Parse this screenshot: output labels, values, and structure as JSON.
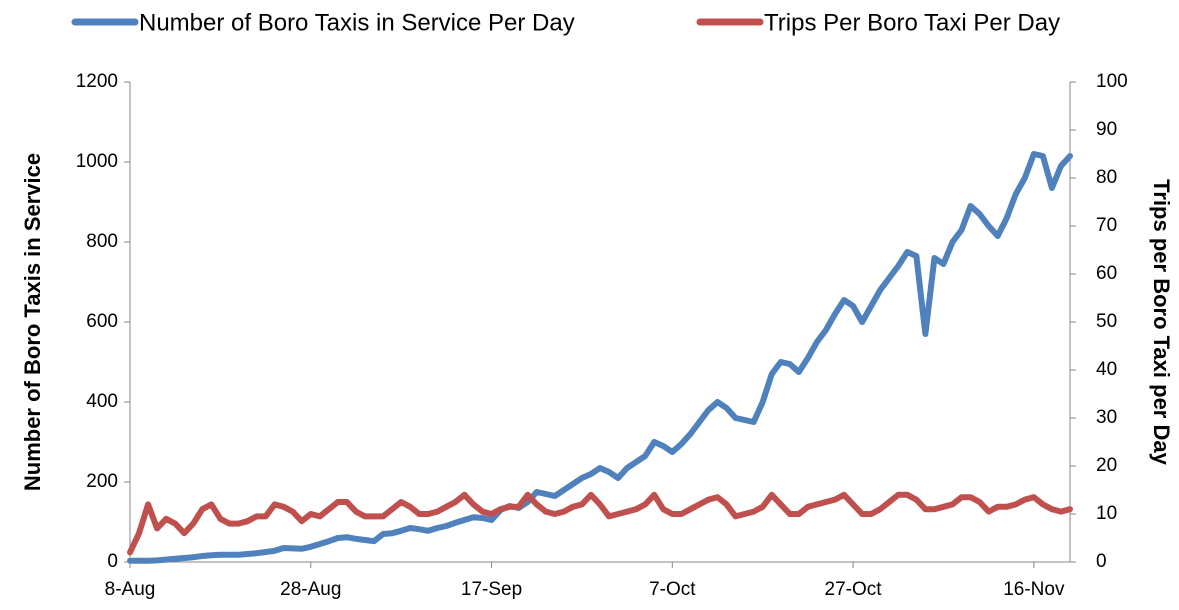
{
  "chart_data": {
    "type": "line",
    "categories": [
      "8-Aug",
      null,
      null,
      null,
      null,
      null,
      null,
      null,
      null,
      null,
      null,
      null,
      null,
      null,
      null,
      null,
      null,
      null,
      null,
      null,
      "28-Aug",
      null,
      null,
      null,
      null,
      null,
      null,
      null,
      null,
      null,
      null,
      null,
      null,
      null,
      null,
      null,
      null,
      null,
      null,
      null,
      "17-Sep",
      null,
      null,
      null,
      null,
      null,
      null,
      null,
      null,
      null,
      null,
      null,
      null,
      null,
      null,
      null,
      null,
      null,
      null,
      null,
      "7-Oct",
      null,
      null,
      null,
      null,
      null,
      null,
      null,
      null,
      null,
      null,
      null,
      null,
      null,
      null,
      null,
      null,
      null,
      null,
      null,
      "27-Oct",
      null,
      null,
      null,
      null,
      null,
      null,
      null,
      null,
      null,
      null,
      null,
      null,
      null,
      null,
      null,
      null,
      null,
      null,
      null,
      "16-Nov",
      null,
      null,
      null,
      null
    ],
    "series": [
      {
        "name": "Number of Boro Taxis in Service Per Day",
        "color": "#4f81bd",
        "axis": "y",
        "values": [
          3,
          3,
          3,
          4,
          6,
          8,
          10,
          12,
          15,
          17,
          18,
          18,
          18,
          20,
          22,
          25,
          28,
          35,
          34,
          33,
          38,
          45,
          52,
          60,
          62,
          58,
          55,
          52,
          70,
          72,
          78,
          85,
          82,
          78,
          85,
          90,
          98,
          105,
          112,
          110,
          105,
          130,
          140,
          135,
          150,
          175,
          170,
          165,
          180,
          195,
          210,
          220,
          235,
          225,
          210,
          235,
          250,
          265,
          300,
          290,
          275,
          295,
          320,
          350,
          380,
          400,
          385,
          360,
          355,
          350,
          400,
          470,
          500,
          495,
          475,
          510,
          550,
          580,
          620,
          655,
          640,
          600,
          640,
          680,
          710,
          740,
          775,
          765,
          570,
          760,
          745,
          800,
          830,
          890,
          870,
          840,
          815,
          860,
          920,
          960,
          1020,
          1015,
          935,
          990,
          1015
        ]
      },
      {
        "name": "Trips Per Boro Taxi Per Day",
        "color": "#c0504d",
        "axis": "y2",
        "values": [
          2,
          6,
          12,
          7,
          9,
          8,
          6,
          8,
          11,
          12,
          9,
          8,
          8,
          8.5,
          9.5,
          9.5,
          12,
          11.5,
          10.5,
          8.5,
          10,
          9.5,
          11,
          12.5,
          12.5,
          10.5,
          9.5,
          9.5,
          9.5,
          11,
          12.5,
          11.5,
          10,
          10,
          10.5,
          11.5,
          12.5,
          14,
          12,
          10.5,
          10,
          11,
          11.5,
          11.5,
          14,
          12,
          10.5,
          10,
          10.5,
          11.5,
          12,
          14,
          12,
          9.5,
          10,
          10.5,
          11,
          12,
          14,
          11,
          10,
          10,
          11,
          12,
          13,
          13.5,
          12,
          9.5,
          10,
          10.5,
          11.5,
          14,
          12,
          10,
          10,
          11.5,
          12,
          12.5,
          13,
          14,
          12,
          10,
          10,
          11,
          12.5,
          14,
          14,
          13,
          11,
          11,
          11.5,
          12,
          13.5,
          13.5,
          12.5,
          10.5,
          11.5,
          11.5,
          12,
          13,
          13.5,
          12,
          11,
          10.5,
          11
        ]
      }
    ],
    "ylabel": "Number of Boro Taxis in Service",
    "y2label": "Trips per Boro Taxi per Day",
    "ylim": [
      0,
      1200
    ],
    "yticks": [
      0,
      200,
      400,
      600,
      800,
      1000,
      1200
    ],
    "y2lim": [
      0,
      100
    ],
    "y2ticks": [
      0,
      10,
      20,
      30,
      40,
      50,
      60,
      70,
      80,
      90,
      100
    ],
    "legend": "top",
    "grid": false
  }
}
